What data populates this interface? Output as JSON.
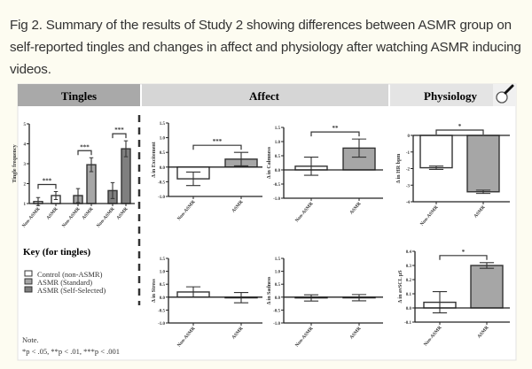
{
  "caption": "Fig 2. Summary of the results of Study 2 showing differences between ASMR group on self-reported tingles and changes in affect and physiology after watching ASMR inducing videos.",
  "figure": {
    "headers": {
      "tingles": "Tingles",
      "affect": "Affect",
      "physiology": "Physiology"
    },
    "key_title": "Key (for tingles)",
    "key_items": [
      {
        "label": "Control (non-ASMR)",
        "color": "#ffffff"
      },
      {
        "label": "ASMR (Standard)",
        "color": "#a6a6a6"
      },
      {
        "label": "ASMR (Self-Selected)",
        "color": "#7f7f7f"
      }
    ],
    "note_title": "Note.",
    "note_text": "*p < .05, **p < .01, ***p < .001",
    "zoom_icon": "magnifier-icon"
  },
  "chart_data": [
    {
      "id": "tingles",
      "type": "bar",
      "ylabel": "Tingle frequency",
      "ylim": [
        1,
        5
      ],
      "yticks": [
        "1",
        "2",
        "3",
        "4",
        "5"
      ],
      "categories": [
        "Non-ASMR",
        "ASMR",
        "Non-ASMR",
        "ASMR",
        "Non-ASMR",
        "ASMR"
      ],
      "values": [
        1.1,
        1.4,
        1.4,
        2.95,
        1.65,
        3.75
      ],
      "errors": [
        0.2,
        0.2,
        0.35,
        0.35,
        0.4,
        0.4
      ],
      "colors": [
        "#ffffff",
        "#ffffff",
        "#a6a6a6",
        "#a6a6a6",
        "#7f7f7f",
        "#7f7f7f"
      ],
      "significance": [
        {
          "pair": [
            0,
            1
          ],
          "label": "***"
        },
        {
          "pair": [
            2,
            3
          ],
          "label": "***"
        },
        {
          "pair": [
            4,
            5
          ],
          "label": "***"
        }
      ]
    },
    {
      "id": "excitement",
      "type": "bar",
      "ylabel": "Δ in Excitement",
      "ylim": [
        -1,
        1.5
      ],
      "yticks": [
        "-1.0",
        "-0.5",
        "0.0",
        "0.5",
        "1.0",
        "1.5"
      ],
      "categories": [
        "Non-ASMR",
        "ASMR"
      ],
      "values": [
        -0.4,
        0.27
      ],
      "errors": [
        0.23,
        0.23
      ],
      "colors": [
        "#ffffff",
        "#a6a6a6"
      ],
      "significance": [
        {
          "pair": [
            0,
            1
          ],
          "label": "***"
        }
      ]
    },
    {
      "id": "calmness",
      "type": "bar",
      "ylabel": "Δ in Calmness",
      "ylim": [
        -1,
        1.5
      ],
      "yticks": [
        "-1.0",
        "-0.5",
        "0.0",
        "0.5",
        "1.0",
        "1.5"
      ],
      "categories": [
        "Non-ASMR",
        "ASMR"
      ],
      "values": [
        0.13,
        0.77
      ],
      "errors": [
        0.32,
        0.32
      ],
      "colors": [
        "#ffffff",
        "#a6a6a6"
      ],
      "significance": [
        {
          "pair": [
            0,
            1
          ],
          "label": "**"
        }
      ]
    },
    {
      "id": "hr",
      "type": "bar",
      "ylabel": "Δ in HR bpm",
      "ylim": [
        -4,
        0
      ],
      "yticks": [
        "-4",
        "-3",
        "-2",
        "-1",
        "0"
      ],
      "categories": [
        "Non-ASMR",
        "ASMR"
      ],
      "values": [
        -1.95,
        -3.4
      ],
      "errors": [
        0.1,
        0.1
      ],
      "colors": [
        "#ffffff",
        "#a6a6a6"
      ],
      "significance": [
        {
          "pair": [
            0,
            1
          ],
          "label": "*"
        }
      ]
    },
    {
      "id": "stress",
      "type": "bar",
      "ylabel": "Δ in Stress",
      "ylim": [
        -1,
        1.5
      ],
      "yticks": [
        "-1.0",
        "-0.5",
        "0.0",
        "0.5",
        "1.0",
        "1.5"
      ],
      "categories": [
        "Non-ASMR",
        "ASMR"
      ],
      "values": [
        0.2,
        -0.02
      ],
      "errors": [
        0.2,
        0.2
      ],
      "colors": [
        "#ffffff",
        "#a6a6a6"
      ],
      "significance": []
    },
    {
      "id": "sadness",
      "type": "bar",
      "ylabel": "Δ in Sadness",
      "ylim": [
        -1,
        1.5
      ],
      "yticks": [
        "-1.0",
        "-0.5",
        "0.0",
        "0.5",
        "1.0",
        "1.5"
      ],
      "categories": [
        "Non-ASMR",
        "ASMR"
      ],
      "values": [
        -0.03,
        -0.02
      ],
      "errors": [
        0.12,
        0.12
      ],
      "colors": [
        "#ffffff",
        "#a6a6a6"
      ],
      "significance": []
    },
    {
      "id": "scl",
      "type": "bar",
      "ylabel": "Δ in avSCL µS",
      "ylim": [
        -0.1,
        0.4
      ],
      "yticks": [
        "-0.1",
        "0.0",
        "0.1",
        "0.2",
        "0.3",
        "0.4"
      ],
      "categories": [
        "Non-ASMR",
        "ASMR"
      ],
      "values": [
        0.04,
        0.3
      ],
      "errors": [
        0.075,
        0.02
      ],
      "colors": [
        "#ffffff",
        "#a6a6a6"
      ],
      "significance": [
        {
          "pair": [
            0,
            1
          ],
          "label": "*"
        }
      ]
    }
  ]
}
